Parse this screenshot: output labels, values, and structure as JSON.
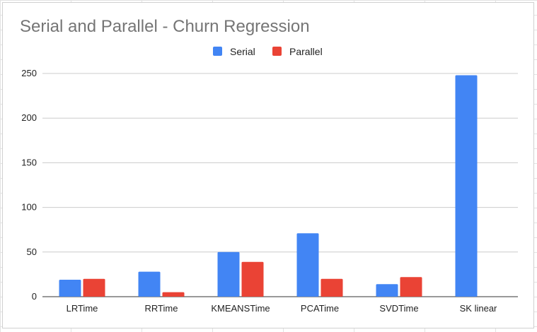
{
  "chart_data": {
    "type": "bar",
    "title": "Serial and Parallel - Churn Regression",
    "categories": [
      "LRTime",
      "RRTime",
      "KMEANSTime",
      "PCATime",
      "SVDTime",
      "SK linear"
    ],
    "series": [
      {
        "name": "Serial",
        "color": "#4285f4",
        "values": [
          19,
          28,
          50,
          71,
          14,
          248
        ]
      },
      {
        "name": "Parallel",
        "color": "#ea4335",
        "values": [
          20,
          5,
          39,
          20,
          22,
          0
        ]
      }
    ],
    "y_ticks": [
      "0",
      "50",
      "100",
      "150",
      "200",
      "250"
    ],
    "ylim": [
      0,
      250
    ],
    "grid": true,
    "legend": "top",
    "xlabel": "",
    "ylabel": ""
  }
}
